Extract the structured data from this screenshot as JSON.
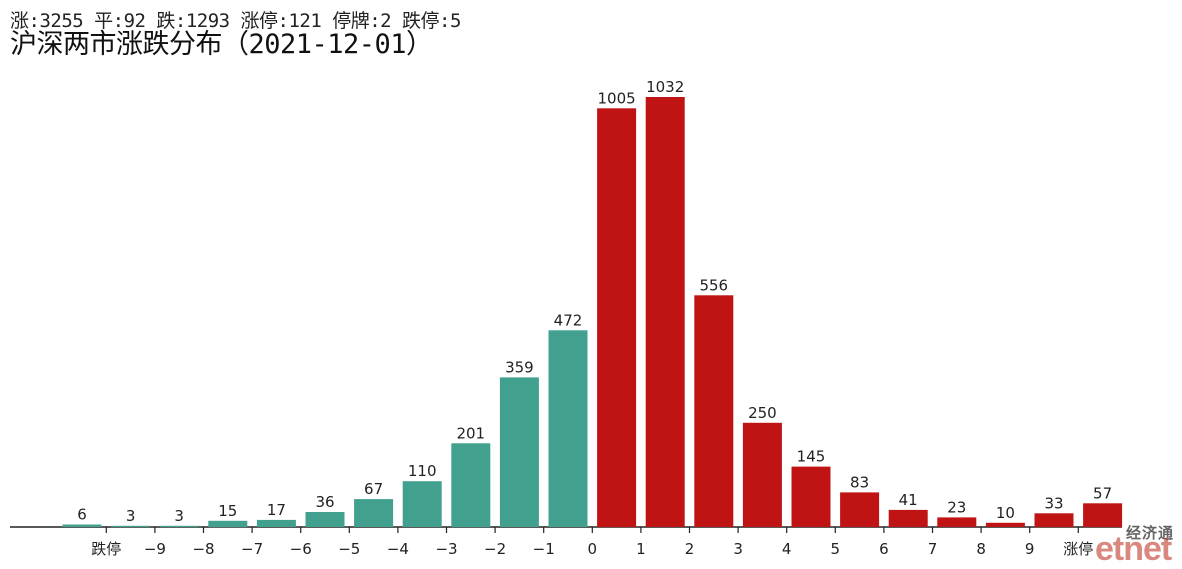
{
  "header": {
    "stats": "涨:3255 平:92 跌:1293 涨停:121 停牌:2 跌停:5",
    "title": "沪深两市涨跌分布（2021-12-01）"
  },
  "watermark": {
    "cn": "经济通",
    "en": "etnet"
  },
  "colors": {
    "down": "#42a08e",
    "up": "#c01414",
    "axis": "#222222"
  },
  "chart_data": {
    "type": "bar",
    "title": "沪深两市涨跌分布（2021-12-01）",
    "xlabel": "",
    "ylabel": "",
    "grid": false,
    "categories": [
      "跌停",
      "-9",
      "-8",
      "-7",
      "-6",
      "-5",
      "-4",
      "-3",
      "-2",
      "-1",
      "0",
      "1",
      "2",
      "3",
      "4",
      "5",
      "6",
      "7",
      "8",
      "9",
      "涨停"
    ],
    "bars": [
      {
        "label": "跌停",
        "value": 6,
        "side": "down"
      },
      {
        "label": "-9",
        "value": 3,
        "side": "down"
      },
      {
        "label": "-8",
        "value": 3,
        "side": "down"
      },
      {
        "label": "-7",
        "value": 15,
        "side": "down"
      },
      {
        "label": "-6",
        "value": 17,
        "side": "down"
      },
      {
        "label": "-5",
        "value": 36,
        "side": "down"
      },
      {
        "label": "-4",
        "value": 67,
        "side": "down"
      },
      {
        "label": "-3",
        "value": 110,
        "side": "down"
      },
      {
        "label": "-2",
        "value": 201,
        "side": "down"
      },
      {
        "label": "-1",
        "value": 359,
        "side": "down"
      },
      {
        "label": "0",
        "value": 472,
        "side": "down"
      },
      {
        "label": "0",
        "value": 1005,
        "side": "up"
      },
      {
        "label": "1",
        "value": 1032,
        "side": "up"
      },
      {
        "label": "2",
        "value": 556,
        "side": "up"
      },
      {
        "label": "3",
        "value": 250,
        "side": "up"
      },
      {
        "label": "4",
        "value": 145,
        "side": "up"
      },
      {
        "label": "5",
        "value": 83,
        "side": "up"
      },
      {
        "label": "6",
        "value": 41,
        "side": "up"
      },
      {
        "label": "7",
        "value": 23,
        "side": "up"
      },
      {
        "label": "8",
        "value": 10,
        "side": "up"
      },
      {
        "label": "9",
        "value": 33,
        "side": "up"
      },
      {
        "label": "涨停",
        "value": 57,
        "side": "up"
      }
    ],
    "tick_labels": [
      "跌停",
      "−9",
      "−8",
      "−7",
      "−6",
      "−5",
      "−4",
      "−3",
      "−2",
      "−1",
      "0",
      "1",
      "2",
      "3",
      "4",
      "5",
      "6",
      "7",
      "8",
      "9",
      "涨停"
    ],
    "ylim": [
      0,
      1100
    ]
  }
}
